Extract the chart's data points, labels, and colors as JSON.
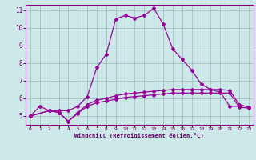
{
  "xlabel": "Windchill (Refroidissement éolien,°C)",
  "bg_color": "#cce8e8",
  "grid_color": "#99bbbb",
  "line_color": "#990099",
  "spine_color": "#880088",
  "xlim": [
    -0.5,
    23.5
  ],
  "ylim": [
    4.5,
    11.3
  ],
  "xticks": [
    0,
    1,
    2,
    3,
    4,
    5,
    6,
    7,
    8,
    9,
    10,
    11,
    12,
    13,
    14,
    15,
    16,
    17,
    18,
    19,
    20,
    21,
    22,
    23
  ],
  "yticks": [
    5,
    6,
    7,
    8,
    9,
    10,
    11
  ],
  "line1_x": [
    0,
    1,
    2,
    3,
    4,
    5,
    6,
    7,
    8,
    9,
    10,
    11,
    12,
    13,
    14,
    15,
    16,
    17,
    18,
    19,
    20,
    21,
    22
  ],
  "line1_y": [
    5.0,
    5.55,
    5.3,
    5.3,
    5.3,
    5.55,
    6.1,
    7.75,
    8.5,
    10.5,
    10.7,
    10.55,
    10.7,
    11.1,
    10.2,
    8.8,
    8.2,
    7.6,
    6.8,
    6.5,
    6.35,
    5.55,
    5.55
  ],
  "line2_x": [
    0,
    2,
    3,
    4,
    5,
    6,
    7,
    8,
    9,
    10,
    11,
    12,
    13,
    14,
    15,
    16,
    17,
    18,
    19,
    20,
    21,
    22,
    23
  ],
  "line2_y": [
    5.0,
    5.3,
    5.2,
    4.7,
    5.2,
    5.65,
    5.9,
    6.0,
    6.15,
    6.25,
    6.3,
    6.35,
    6.4,
    6.45,
    6.5,
    6.5,
    6.5,
    6.5,
    6.5,
    6.5,
    6.45,
    5.65,
    5.5
  ],
  "line3_x": [
    0,
    2,
    3,
    4,
    5,
    6,
    7,
    8,
    9,
    10,
    11,
    12,
    13,
    14,
    15,
    16,
    17,
    18,
    19,
    20,
    21,
    22,
    23
  ],
  "line3_y": [
    5.0,
    5.3,
    5.2,
    4.7,
    5.15,
    5.55,
    5.75,
    5.85,
    5.95,
    6.05,
    6.1,
    6.15,
    6.2,
    6.25,
    6.3,
    6.3,
    6.3,
    6.3,
    6.3,
    6.3,
    6.3,
    5.5,
    5.45
  ]
}
